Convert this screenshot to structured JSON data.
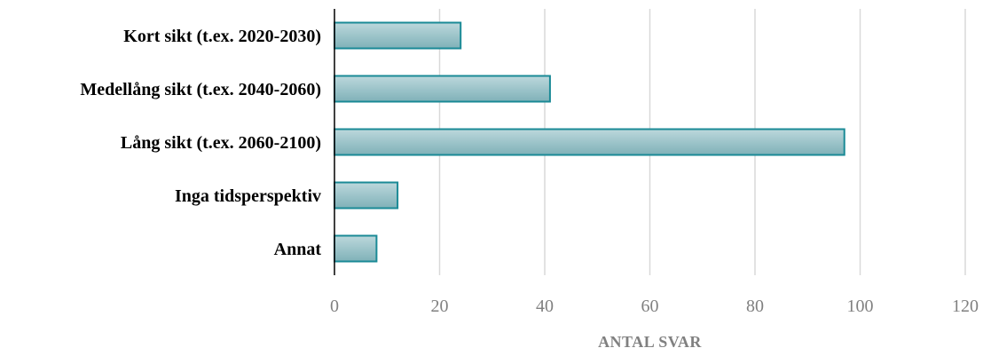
{
  "chart_data": {
    "type": "bar",
    "orientation": "horizontal",
    "categories": [
      "Kort sikt (t.ex. 2020-2030)",
      "Medellång sikt (t.ex. 2040-2060)",
      "Lång sikt (t.ex. 2060-2100)",
      "Inga tidsperspektiv",
      "Annat"
    ],
    "values": [
      24,
      41,
      97,
      12,
      8
    ],
    "xlabel": "ANTAL SVAR",
    "ylabel": "",
    "xlim": [
      0,
      120
    ],
    "xticks": [
      "0",
      "20",
      "40",
      "60",
      "80",
      "100",
      "120"
    ],
    "grid": "vertical",
    "colors": {
      "bar_fill_top": "#bcd8dc",
      "bar_fill_bottom": "#7fb1b8",
      "bar_stroke": "#1a8a96",
      "grid": "#d9d9d9",
      "axis": "#000000",
      "tick_text": "#808080"
    }
  }
}
